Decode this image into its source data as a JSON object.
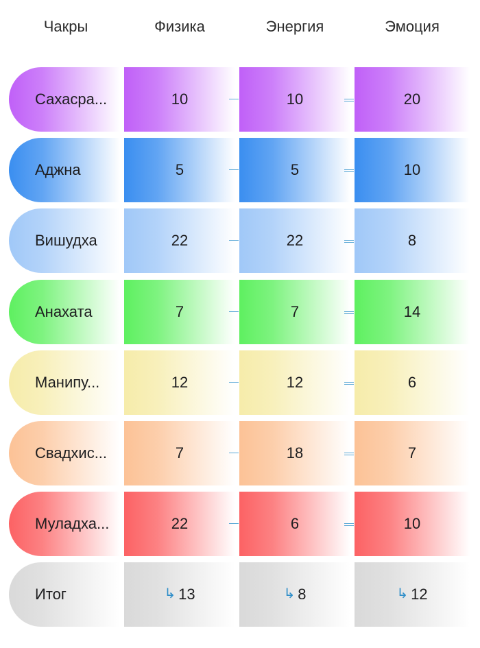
{
  "header": {
    "col0": "Чакры",
    "col1": "Физика",
    "col2": "Энергия",
    "col3": "Эмоция"
  },
  "rows": [
    {
      "name": "Сахасра...",
      "physics": "10",
      "energy": "10",
      "emotion": "20",
      "color": "#c060f8"
    },
    {
      "name": "Аджна",
      "physics": "5",
      "energy": "5",
      "emotion": "10",
      "color": "#3a8ef0"
    },
    {
      "name": "Вишудха",
      "physics": "22",
      "energy": "22",
      "emotion": "8",
      "color": "#a0c8f8"
    },
    {
      "name": "Анахата",
      "physics": "7",
      "energy": "7",
      "emotion": "14",
      "color": "#5ef060"
    },
    {
      "name": "Манипу...",
      "physics": "12",
      "energy": "12",
      "emotion": "6",
      "color": "#f6ecaa"
    },
    {
      "name": "Свадхис...",
      "physics": "7",
      "energy": "18",
      "emotion": "7",
      "color": "#fcc296"
    },
    {
      "name": "Муладха...",
      "physics": "22",
      "energy": "6",
      "emotion": "10",
      "color": "#fc6264"
    }
  ],
  "total": {
    "name": "Итог",
    "physics": "13",
    "energy": "8",
    "emotion": "12",
    "color": "#d9d9d9",
    "arrow_icon": "arrow-down-right-icon"
  }
}
